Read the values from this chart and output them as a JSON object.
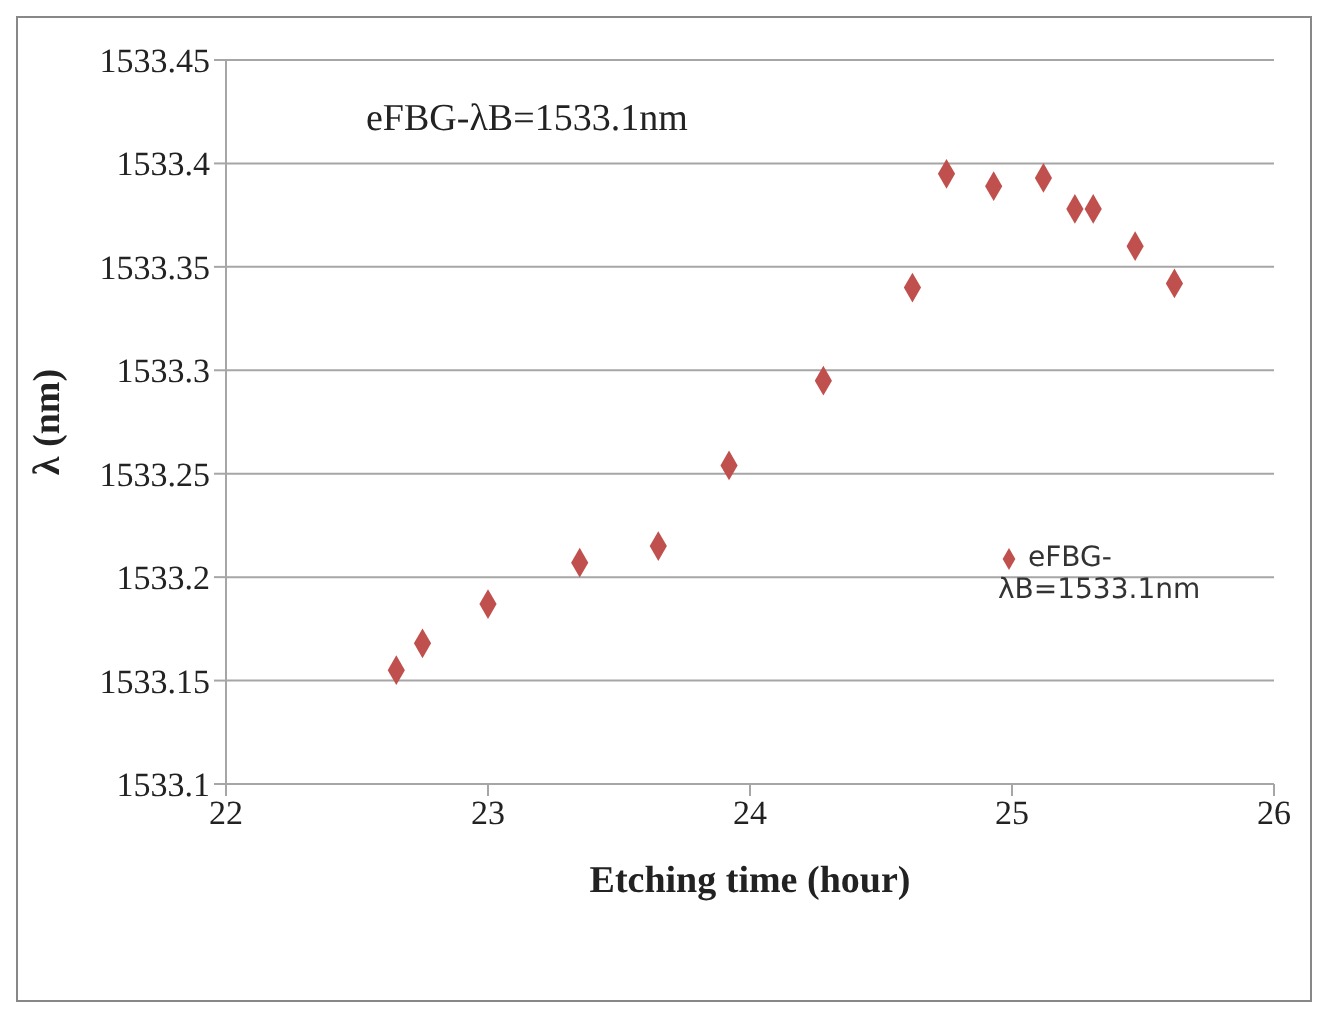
{
  "chart_data": {
    "type": "scatter",
    "xlabel": "Etching time (hour)",
    "ylabel": "λ (nm)",
    "annotations": [
      "eFBG-λB=1533.1nm"
    ],
    "x": [
      22.65,
      22.75,
      23.0,
      23.35,
      23.65,
      23.92,
      24.28,
      24.62,
      24.75,
      24.93,
      25.12,
      25.24,
      25.31,
      25.47,
      25.62
    ],
    "series": [
      {
        "name": "eFBG-λB=1533.1nm",
        "color": "#c0504d",
        "values": [
          1533.155,
          1533.168,
          1533.187,
          1533.207,
          1533.215,
          1533.254,
          1533.295,
          1533.34,
          1533.395,
          1533.389,
          1533.393,
          1533.378,
          1533.378,
          1533.36,
          1533.342
        ]
      }
    ],
    "xlim": [
      22,
      26
    ],
    "xticks": [
      22,
      23,
      24,
      25,
      26
    ],
    "ylim": [
      1533.1,
      1533.45
    ],
    "yticks": [
      1533.1,
      1533.15,
      1533.2,
      1533.25,
      1533.3,
      1533.35,
      1533.4,
      1533.45
    ],
    "grid": "y",
    "legend": "right",
    "marker": "diamond"
  }
}
